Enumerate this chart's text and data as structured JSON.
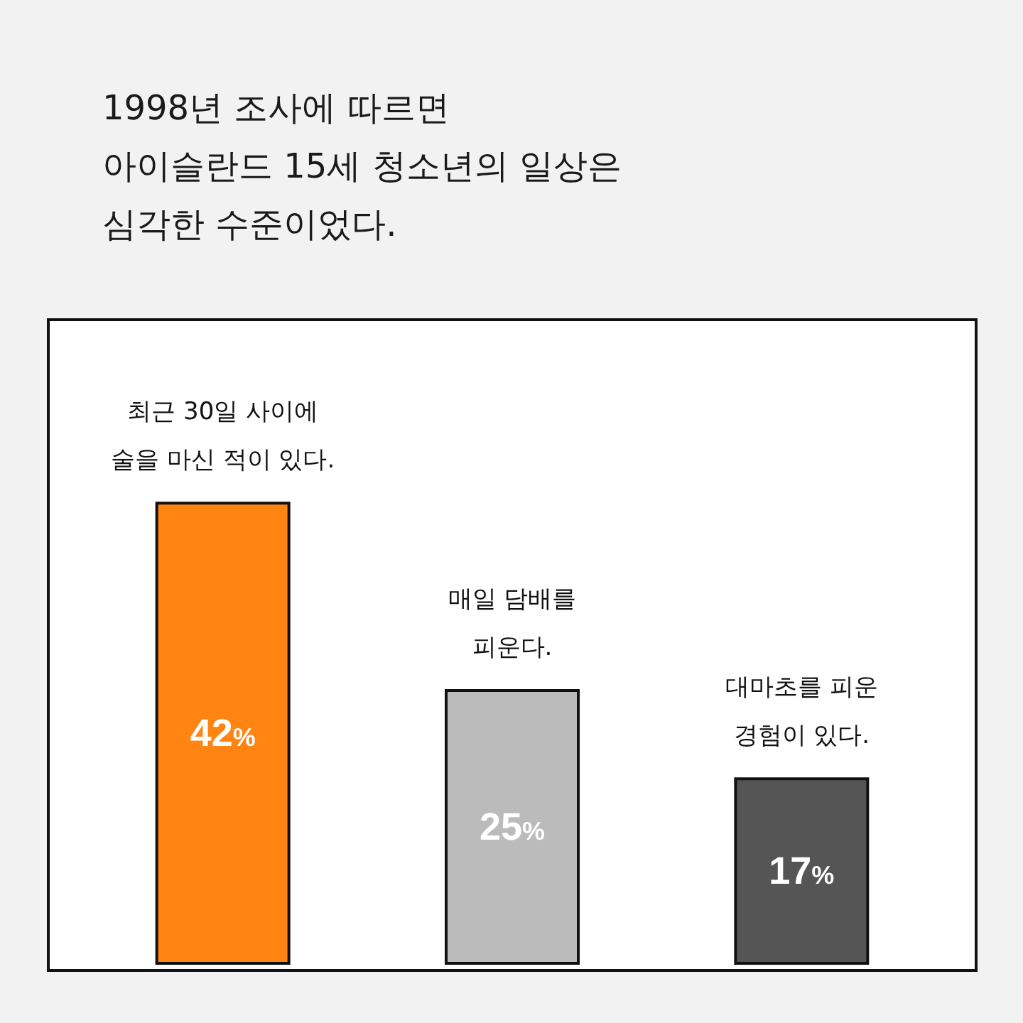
{
  "chart_data": {
    "type": "bar",
    "title": "1998년 조사에 따르면\n아이슬란드 15세 청소년의 일상은\n심각한 수준이었다.",
    "categories": [
      "최근 30일 사이에\n술을 마신 적이 있다.",
      "매일 담배를\n피운다.",
      "대마초를 피운\n경험이 있다."
    ],
    "values": [
      42,
      25,
      17
    ],
    "colors": [
      "#ff8412",
      "#bbbbbb",
      "#555555"
    ],
    "value_labels": [
      "42%",
      "25%",
      "17%"
    ],
    "grid": false
  }
}
